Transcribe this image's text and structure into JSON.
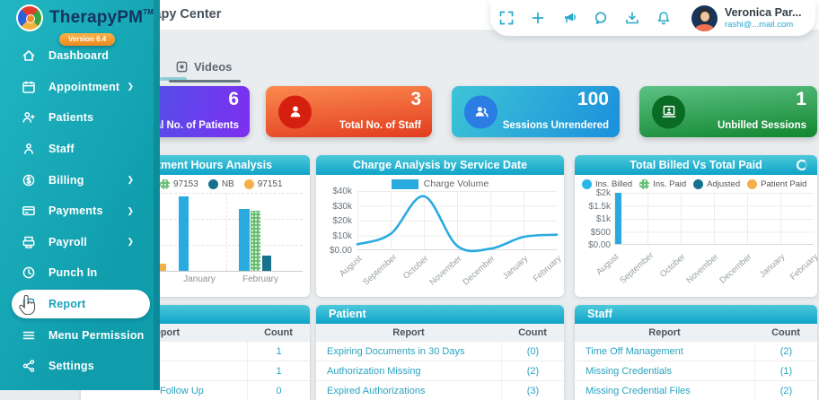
{
  "sidebar": {
    "brand": "TherapyPM",
    "trademark": "TM",
    "version_badge": "Version 6.4",
    "items": [
      {
        "label": "Dashboard"
      },
      {
        "label": "Appointment",
        "expandable": true
      },
      {
        "label": "Patients"
      },
      {
        "label": "Staff"
      },
      {
        "label": "Billing",
        "expandable": true
      },
      {
        "label": "Payments",
        "expandable": true
      },
      {
        "label": "Payroll",
        "expandable": true
      },
      {
        "label": "Punch In"
      },
      {
        "label": "Report",
        "active": true
      },
      {
        "label": "Menu Permission"
      },
      {
        "label": "Settings"
      }
    ]
  },
  "topbar": {
    "page_title": "Therapy Center",
    "icon_names": [
      "fullscreen-icon",
      "add-icon",
      "announcement-icon",
      "chat-icon",
      "download-icon",
      "notification-icon"
    ],
    "user": {
      "name": "Veronica Par...",
      "email": "rashi@...mail.com"
    }
  },
  "tabs": [
    {
      "label": "Videos"
    }
  ],
  "stat_cards": [
    {
      "value": "6",
      "label": "Total No. of Patients",
      "colors": [
        "#2e6ce0",
        "#7d2ff0"
      ]
    },
    {
      "value": "3",
      "label": "Total No. of Staff",
      "colors": [
        "#fb8a4e",
        "#e23d20"
      ]
    },
    {
      "value": "100",
      "label": "Sessions Unrendered",
      "colors": [
        "#3dc5d6",
        "#1b8fdc"
      ]
    },
    {
      "value": "1",
      "label": "Unbilled Sessions",
      "colors": [
        "#5dc285",
        "#11862f"
      ]
    }
  ],
  "charts": {
    "hours": {
      "title": "Appointment Hours Analysis",
      "legend": [
        {
          "label": "97153",
          "color": "#67bd73"
        },
        {
          "label": "NB",
          "color": "#16708e"
        },
        {
          "label": "97151",
          "color": "#f5b04c"
        }
      ],
      "chart_data": {
        "type": "bar",
        "categories": [
          "January",
          "February"
        ],
        "series": [
          {
            "name": "unlabeled-blue",
            "color": "#29abe2",
            "values_pct": [
              95,
              79
            ]
          },
          {
            "name": "97153",
            "color": "#67bd73",
            "values_pct": [
              0,
              77
            ]
          },
          {
            "name": "NB",
            "color": "#16708e",
            "values_pct": [
              0,
              20
            ]
          },
          {
            "name": "97151",
            "color": "#f5b04c",
            "values_pct": [
              9,
              0
            ]
          }
        ],
        "note": "y-axis occluded by sidebar; values are percent of plot height"
      }
    },
    "charge": {
      "title": "Charge Analysis by Service Date",
      "legend_label": "Charge Volume",
      "chart_data": {
        "type": "line",
        "x": [
          "August",
          "September",
          "October",
          "November",
          "December",
          "January",
          "February"
        ],
        "values": [
          4000,
          11000,
          36500,
          3000,
          1000,
          9000,
          10500
        ],
        "color": "#29abe2",
        "yticks": [
          "$40k",
          "$30k",
          "$20k",
          "$10k",
          "$0.00"
        ],
        "ylim": [
          0,
          40000
        ]
      }
    },
    "billed": {
      "title": "Total Billed Vs Total Paid",
      "legend": [
        {
          "label": "Ins. Billed",
          "color": "#29b6e8"
        },
        {
          "label": "Ins. Paid",
          "color": "#67bd73"
        },
        {
          "label": "Adjusted",
          "color": "#16708e"
        },
        {
          "label": "Patient Paid",
          "color": "#f5b04c"
        }
      ],
      "chart_data": {
        "type": "bar",
        "categories": [
          "August",
          "September",
          "October",
          "November",
          "December",
          "January",
          "February"
        ],
        "series": [
          {
            "name": "Ins. Billed",
            "color": "#29abe2",
            "values": [
              1950,
              0,
              0,
              0,
              0,
              0,
              0
            ]
          },
          {
            "name": "Ins. Paid",
            "color": "#67bd73",
            "values": [
              0,
              0,
              0,
              0,
              0,
              0,
              0
            ]
          },
          {
            "name": "Adjusted",
            "color": "#16708e",
            "values": [
              0,
              0,
              0,
              0,
              0,
              0,
              0
            ]
          },
          {
            "name": "Patient Paid",
            "color": "#f5b04c",
            "values": [
              0,
              0,
              0,
              0,
              0,
              0,
              0
            ]
          }
        ],
        "yticks": [
          "$2k",
          "$1.5k",
          "$1k",
          "$500",
          "$0.00"
        ],
        "ylim": [
          0,
          2000
        ]
      }
    }
  },
  "tables": [
    {
      "title": "",
      "headers": [
        "Report",
        "Count"
      ],
      "rows": [
        {
          "report": "",
          "count": "1"
        },
        {
          "report": "",
          "count": "1"
        },
        {
          "report": "Follow Up",
          "count": "0"
        }
      ]
    },
    {
      "title": "Patient",
      "headers": [
        "Report",
        "Count"
      ],
      "rows": [
        {
          "report": "Expiring Documents in 30 Days",
          "count": "(0)"
        },
        {
          "report": "Authorization Missing",
          "count": "(2)"
        },
        {
          "report": "Expired Authorizations",
          "count": "(3)"
        }
      ]
    },
    {
      "title": "Staff",
      "headers": [
        "Report",
        "Count"
      ],
      "rows": [
        {
          "report": "Time Off Management",
          "count": "(2)"
        },
        {
          "report": "Missing Credentials",
          "count": "(1)"
        },
        {
          "report": "Missing Credential Files",
          "count": "(2)"
        }
      ]
    }
  ]
}
